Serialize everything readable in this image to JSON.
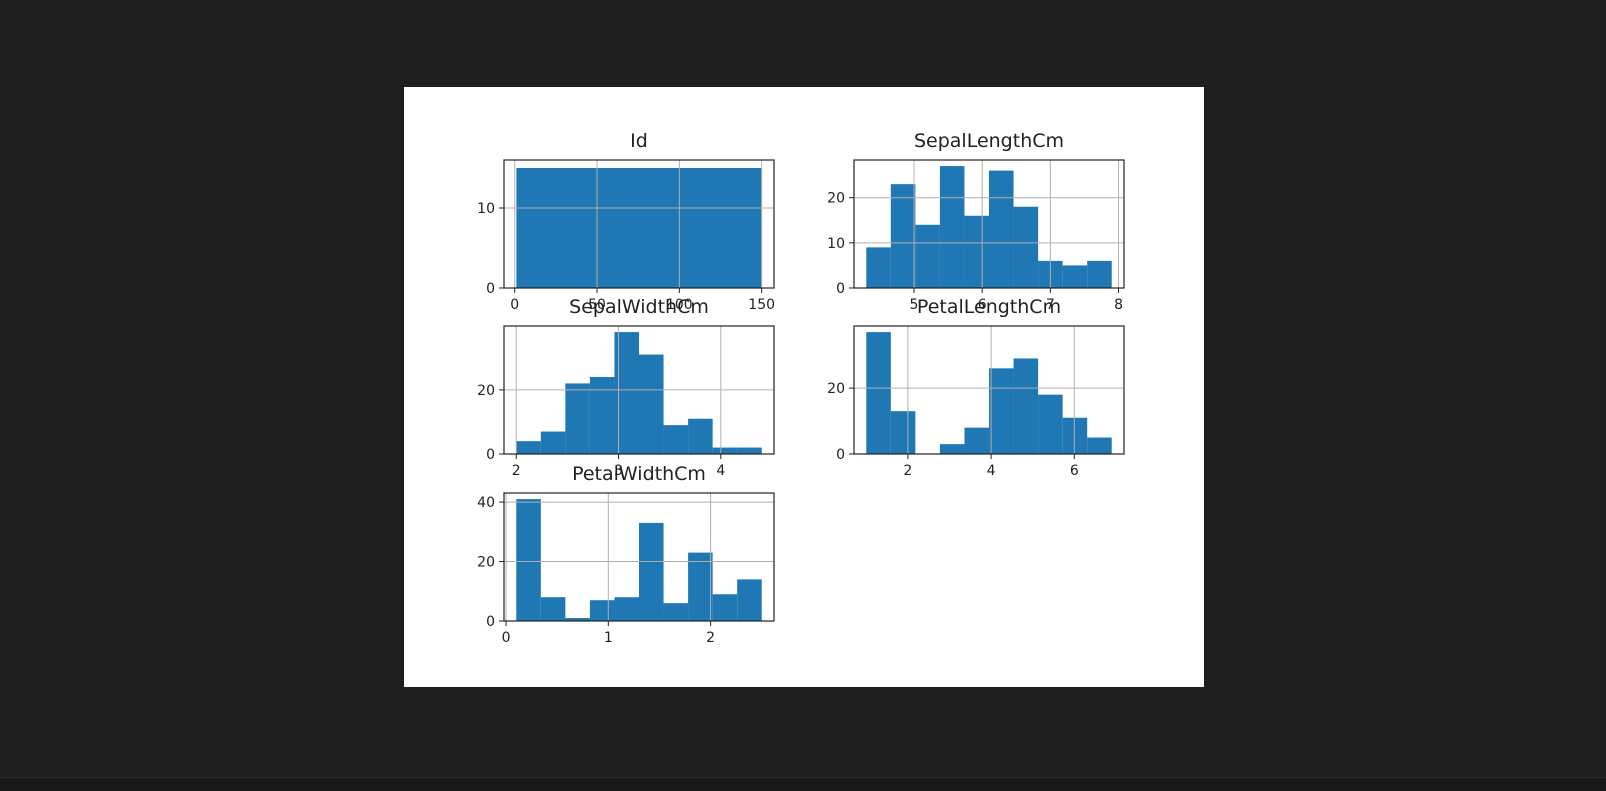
{
  "chart_data": [
    {
      "type": "bar",
      "title": "Id",
      "xlabel": "",
      "ylabel": "",
      "bin_edges": [
        1,
        150
      ],
      "values": [
        15
      ],
      "xlim": [
        -6.5,
        157.5
      ],
      "ylim": [
        0,
        16
      ],
      "xticks": [
        0,
        50,
        100,
        150
      ],
      "xtick_labels": [
        "0",
        "50",
        "100",
        "150"
      ],
      "yticks": [
        0,
        10
      ],
      "ytick_labels": [
        "0",
        "10"
      ],
      "grid": true
    },
    {
      "type": "bar",
      "title": "SepalLengthCm",
      "xlabel": "",
      "ylabel": "",
      "bin_edges": [
        4.3,
        4.66,
        5.02,
        5.38,
        5.74,
        6.1,
        6.46,
        6.82,
        7.18,
        7.54,
        7.9
      ],
      "values": [
        9,
        23,
        14,
        27,
        16,
        26,
        18,
        6,
        5,
        6
      ],
      "xlim": [
        4.12,
        8.08
      ],
      "ylim": [
        0,
        28.35
      ],
      "xticks": [
        5,
        6,
        7,
        8
      ],
      "xtick_labels": [
        "5",
        "6",
        "7",
        "8"
      ],
      "yticks": [
        0,
        10,
        20
      ],
      "ytick_labels": [
        "0",
        "10",
        "20"
      ],
      "grid": true
    },
    {
      "type": "bar",
      "title": "SepalWidthCm",
      "xlabel": "",
      "ylabel": "",
      "bin_edges": [
        2.0,
        2.24,
        2.48,
        2.72,
        2.96,
        3.2,
        3.44,
        3.68,
        3.92,
        4.16,
        4.4
      ],
      "values": [
        4,
        7,
        22,
        24,
        38,
        31,
        9,
        11,
        2,
        2
      ],
      "xlim": [
        1.88,
        4.52
      ],
      "ylim": [
        0,
        39.9
      ],
      "xticks": [
        2,
        3,
        4
      ],
      "xtick_labels": [
        "2",
        "3",
        "4"
      ],
      "yticks": [
        0,
        20
      ],
      "ytick_labels": [
        "0",
        "20"
      ],
      "grid": true
    },
    {
      "type": "bar",
      "title": "PetalLengthCm",
      "xlabel": "",
      "ylabel": "",
      "bin_edges": [
        1.0,
        1.59,
        2.18,
        2.77,
        3.36,
        3.95,
        4.54,
        5.13,
        5.72,
        6.31,
        6.9
      ],
      "values": [
        37,
        13,
        0,
        3,
        8,
        26,
        29,
        18,
        11,
        5
      ],
      "xlim": [
        0.705,
        7.195
      ],
      "ylim": [
        0,
        38.85
      ],
      "xticks": [
        2,
        4,
        6
      ],
      "xtick_labels": [
        "2",
        "4",
        "6"
      ],
      "yticks": [
        0,
        20
      ],
      "ytick_labels": [
        "0",
        "20"
      ],
      "grid": true
    },
    {
      "type": "bar",
      "title": "PetalWidthCm",
      "xlabel": "",
      "ylabel": "",
      "bin_edges": [
        0.1,
        0.34,
        0.58,
        0.82,
        1.06,
        1.3,
        1.54,
        1.78,
        2.02,
        2.26,
        2.5
      ],
      "values": [
        41,
        8,
        1,
        7,
        8,
        33,
        6,
        23,
        9,
        14
      ],
      "xlim": [
        -0.02,
        2.62
      ],
      "ylim": [
        0,
        43.05
      ],
      "xticks": [
        0,
        1,
        2
      ],
      "xtick_labels": [
        "0",
        "1",
        "2"
      ],
      "yticks": [
        0,
        20,
        40
      ],
      "ytick_labels": [
        "0",
        "20",
        "40"
      ],
      "grid": true
    }
  ],
  "colors": {
    "bar": "#1f77b4",
    "grid": "#b0b0b0",
    "axis": "#222222",
    "figure_bg": "#ffffff",
    "page_bg": "#1f1f1f"
  }
}
